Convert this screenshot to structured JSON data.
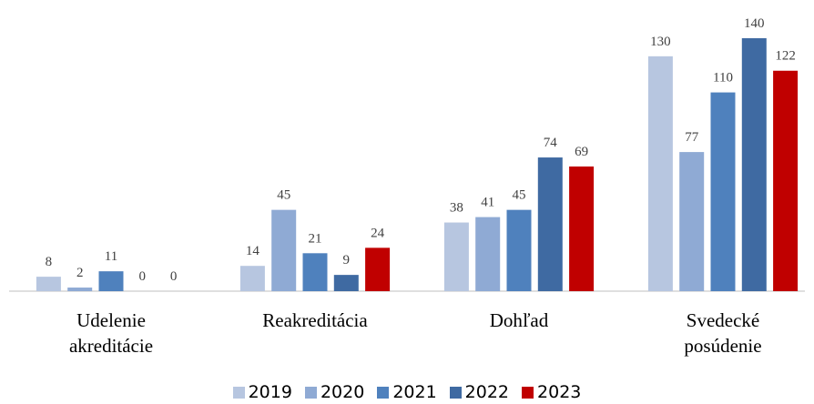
{
  "chart_data": {
    "type": "bar",
    "categories": [
      "Udelenie\nakreditácie",
      "Reakreditácia",
      "Dohľad",
      "Svedecké\nposúdenie"
    ],
    "series": [
      {
        "name": "2019",
        "color": "#b7c6e0",
        "values": [
          8,
          14,
          38,
          130
        ]
      },
      {
        "name": "2020",
        "color": "#8faad4",
        "values": [
          2,
          45,
          41,
          77
        ]
      },
      {
        "name": "2021",
        "color": "#4f81bd",
        "values": [
          11,
          21,
          45,
          110
        ]
      },
      {
        "name": "2022",
        "color": "#3f6aa2",
        "values": [
          0,
          9,
          74,
          140
        ]
      },
      {
        "name": "2023",
        "color": "#c00000",
        "values": [
          0,
          24,
          69,
          122
        ]
      }
    ],
    "legend": "bottom"
  }
}
